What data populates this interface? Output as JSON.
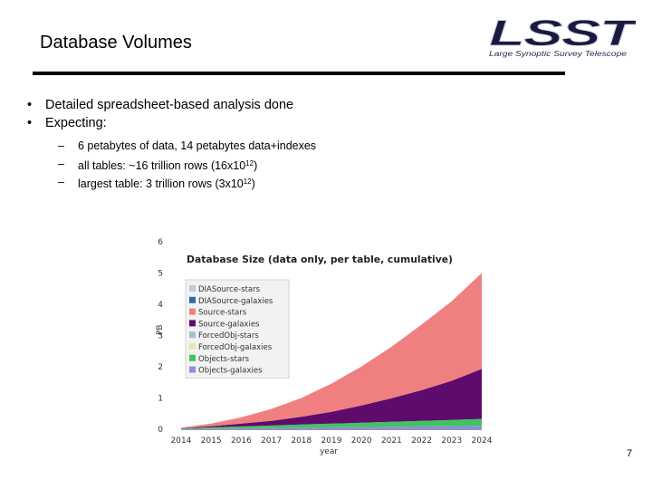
{
  "slide": {
    "title": "Database Volumes",
    "page_number": "7"
  },
  "logo": {
    "wordmark": "LSST",
    "tagline": "Large Synoptic Survey Telescope"
  },
  "bullets": [
    "Detailed spreadsheet-based analysis done",
    "Expecting:"
  ],
  "sub_bullets": [
    {
      "before": "6 petabytes of data, 14 petabytes data+indexes",
      "sup": "",
      "after": ""
    },
    {
      "before": "all tables: ~16 trillion rows (16x10",
      "sup": "12",
      "after": ")"
    },
    {
      "before": "largest table: 3 trillion rows (3x10",
      "sup": "12",
      "after": ")"
    }
  ],
  "chart_data": {
    "type": "area",
    "title": "Database Size (data only, per table, cumulative)",
    "xlabel": "year",
    "ylabel": "PB",
    "xlim": [
      2014,
      2024
    ],
    "ylim": [
      0,
      6
    ],
    "x_ticks": [
      "2014",
      "2015",
      "2016",
      "2017",
      "2018",
      "2019",
      "2020",
      "2021",
      "2022",
      "2023",
      "2024"
    ],
    "y_ticks": [
      "0",
      "1",
      "2",
      "3",
      "4",
      "5",
      "6"
    ],
    "legend_position": "top-left",
    "legend": [
      {
        "name": "DIASource-stars",
        "color": "#b9c9e6"
      },
      {
        "name": "DIASource-galaxies",
        "color": "#2b6da5"
      },
      {
        "name": "Source-stars",
        "color": "#f08080"
      },
      {
        "name": "Source-galaxies",
        "color": "#5e0b6b"
      },
      {
        "name": "ForcedObj-stars",
        "color": "#9cc6c6"
      },
      {
        "name": "ForcedObj-galaxies",
        "color": "#e6e6b4"
      },
      {
        "name": "Objects-stars",
        "color": "#3fc45f"
      },
      {
        "name": "Objects-galaxies",
        "color": "#8e8ee0"
      }
    ],
    "x": [
      2014,
      2015,
      2016,
      2017,
      2018,
      2019,
      2020,
      2021,
      2022,
      2023,
      2024
    ],
    "series": [
      {
        "name": "Objects-galaxies",
        "color": "#8e8ee0",
        "values": [
          0.01,
          0.02,
          0.03,
          0.04,
          0.05,
          0.06,
          0.07,
          0.08,
          0.09,
          0.1,
          0.11
        ]
      },
      {
        "name": "Objects-stars",
        "color": "#3fc45f",
        "values": [
          0.01,
          0.04,
          0.06,
          0.08,
          0.1,
          0.12,
          0.14,
          0.16,
          0.18,
          0.2,
          0.22
        ]
      },
      {
        "name": "ForcedObj-galaxies",
        "color": "#e6e6b4",
        "values": [
          0.0,
          0.0,
          0.0,
          0.0,
          0.0,
          0.0,
          0.0,
          0.0,
          0.0,
          0.0,
          0.0
        ]
      },
      {
        "name": "ForcedObj-stars",
        "color": "#9cc6c6",
        "values": [
          0.0,
          0.0,
          0.0,
          0.0,
          0.0,
          0.0,
          0.0,
          0.0,
          0.0,
          0.0,
          0.0
        ]
      },
      {
        "name": "Source-galaxies",
        "color": "#5e0b6b",
        "values": [
          0.01,
          0.04,
          0.09,
          0.15,
          0.25,
          0.38,
          0.55,
          0.75,
          0.98,
          1.25,
          1.6
        ]
      },
      {
        "name": "Source-stars",
        "color": "#f08080",
        "values": [
          0.02,
          0.08,
          0.2,
          0.38,
          0.6,
          0.9,
          1.25,
          1.65,
          2.1,
          2.55,
          3.07
        ]
      },
      {
        "name": "DIASource-galaxies",
        "color": "#2b6da5",
        "values": [
          0.0,
          0.0,
          0.0,
          0.0,
          0.0,
          0.0,
          0.0,
          0.0,
          0.0,
          0.0,
          0.0
        ]
      },
      {
        "name": "DIASource-stars",
        "color": "#b9c9e6",
        "values": [
          0.0,
          0.0,
          0.0,
          0.0,
          0.0,
          0.0,
          0.0,
          0.0,
          0.0,
          0.0,
          0.0
        ]
      }
    ]
  }
}
